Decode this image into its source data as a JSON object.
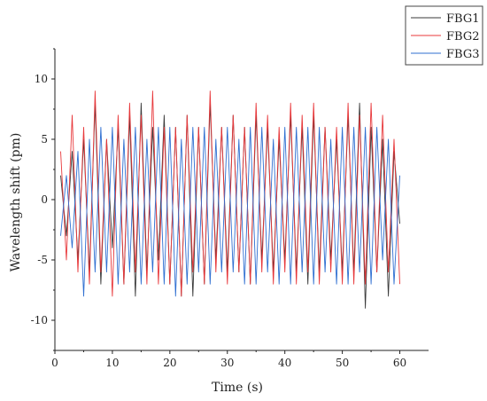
{
  "chart_data": {
    "type": "line",
    "title": "",
    "xlabel": "Time (s)",
    "ylabel": "Wavelength shift (pm)",
    "xlim": [
      0,
      65
    ],
    "ylim": [
      -12.5,
      12.5
    ],
    "x_ticks": [
      0,
      10,
      20,
      30,
      40,
      50,
      60
    ],
    "y_ticks": [
      -10,
      -5,
      0,
      5,
      10
    ],
    "grid": false,
    "legend_position": "top-right",
    "series": [
      {
        "name": "FBG1",
        "color": "#3a3a3a",
        "x": [
          1,
          2,
          3,
          4,
          5,
          6,
          7,
          8,
          9,
          10,
          11,
          12,
          13,
          14,
          15,
          16,
          17,
          18,
          19,
          20,
          21,
          22,
          23,
          24,
          25,
          26,
          27,
          28,
          29,
          30,
          31,
          32,
          33,
          34,
          35,
          36,
          37,
          38,
          39,
          40,
          41,
          42,
          43,
          44,
          45,
          46,
          47,
          48,
          49,
          50,
          51,
          52,
          53,
          54,
          55,
          56,
          57,
          58,
          59,
          60
        ],
        "y": [
          2,
          -3,
          4,
          -5,
          5,
          -6,
          8,
          -7,
          5,
          -4,
          6,
          -7,
          7,
          -8,
          8,
          -6,
          6,
          -5,
          7,
          -7,
          6,
          -8,
          7,
          -8,
          6,
          -7,
          8,
          -5,
          6,
          -6,
          7,
          -6,
          6,
          -7,
          7,
          -5,
          6,
          -6,
          5,
          -5,
          7,
          -6,
          6,
          -7,
          7,
          -6,
          6,
          -5,
          5,
          -6,
          7,
          -6,
          8,
          -9,
          6,
          -6,
          5,
          -8,
          4,
          -2
        ]
      },
      {
        "name": "FBG2",
        "color": "#e8383b",
        "x": [
          1,
          2,
          3,
          4,
          5,
          6,
          7,
          8,
          9,
          10,
          11,
          12,
          13,
          14,
          15,
          16,
          17,
          18,
          19,
          20,
          21,
          22,
          23,
          24,
          25,
          26,
          27,
          28,
          29,
          30,
          31,
          32,
          33,
          34,
          35,
          36,
          37,
          38,
          39,
          40,
          41,
          42,
          43,
          44,
          45,
          46,
          47,
          48,
          49,
          50,
          51,
          52,
          53,
          54,
          55,
          56,
          57,
          58,
          59,
          60
        ],
        "y": [
          4,
          -5,
          7,
          -6,
          6,
          -7,
          9,
          -6,
          5,
          -8,
          7,
          -7,
          8,
          -6,
          7,
          -7,
          9,
          -7,
          6,
          -7,
          6,
          -8,
          7,
          -6,
          6,
          -7,
          9,
          -6,
          6,
          -7,
          7,
          -6,
          6,
          -7,
          8,
          -6,
          7,
          -7,
          6,
          -6,
          8,
          -7,
          7,
          -6,
          8,
          -7,
          6,
          -6,
          6,
          -7,
          8,
          -7,
          7,
          -7,
          8,
          -6,
          7,
          -6,
          5,
          -7
        ]
      },
      {
        "name": "FBG3",
        "color": "#2f6fd1",
        "x": [
          1,
          2,
          3,
          4,
          5,
          6,
          7,
          8,
          9,
          10,
          11,
          12,
          13,
          14,
          15,
          16,
          17,
          18,
          19,
          20,
          21,
          22,
          23,
          24,
          25,
          26,
          27,
          28,
          29,
          30,
          31,
          32,
          33,
          34,
          35,
          36,
          37,
          38,
          39,
          40,
          41,
          42,
          43,
          44,
          45,
          46,
          47,
          48,
          49,
          50,
          51,
          52,
          53,
          54,
          55,
          56,
          57,
          58,
          59,
          60
        ],
        "y": [
          -3,
          2,
          -4,
          4,
          -8,
          5,
          -6,
          6,
          -6,
          6,
          -7,
          5,
          -6,
          6,
          -7,
          5,
          -6,
          6,
          -7,
          6,
          -8,
          5,
          -7,
          6,
          -6,
          6,
          -7,
          5,
          -6,
          6,
          -6,
          5,
          -7,
          6,
          -7,
          6,
          -6,
          5,
          -7,
          6,
          -7,
          6,
          -6,
          6,
          -7,
          6,
          -6,
          5,
          -7,
          6,
          -7,
          6,
          -6,
          6,
          -7,
          6,
          -5,
          5,
          -7,
          2
        ]
      }
    ]
  }
}
